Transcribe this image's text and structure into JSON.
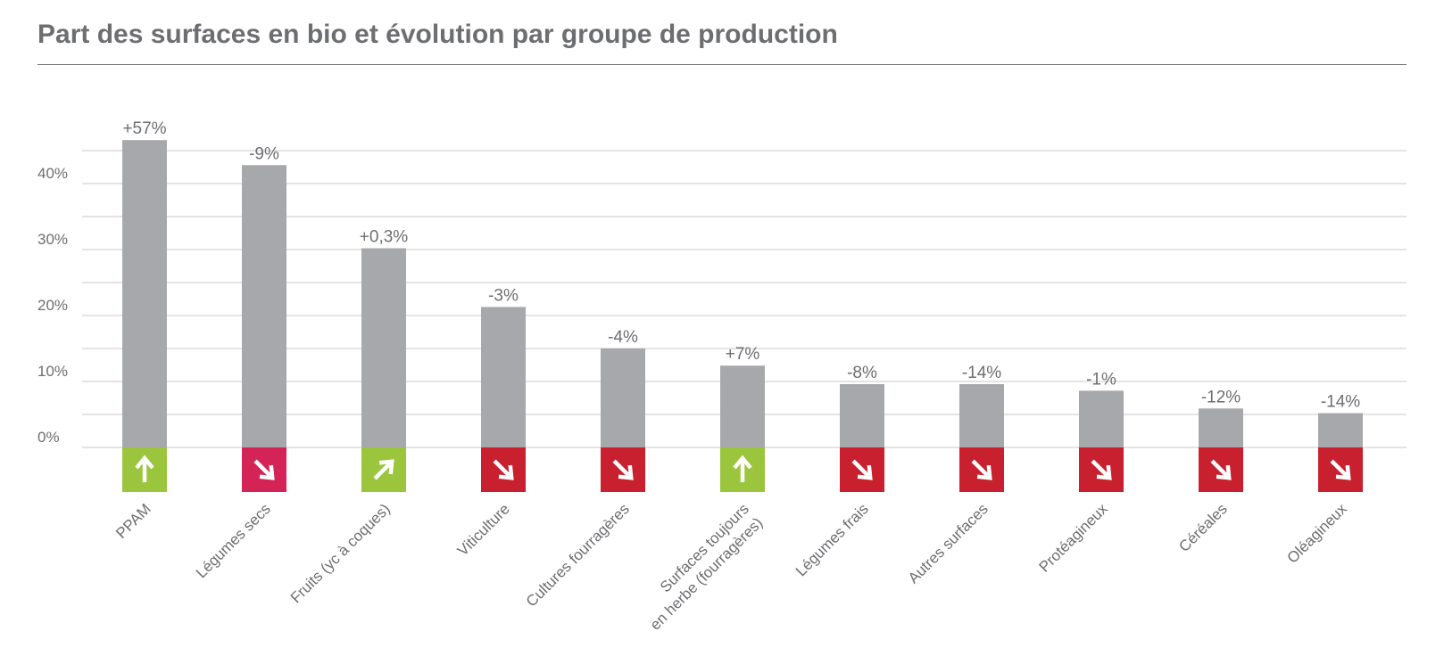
{
  "title": "Part des surfaces en bio et évolution par groupe de production",
  "colors": {
    "bar": "#a7a8ab",
    "grid": "#c8c9cb",
    "text": "#6d6e71",
    "up": "#9bc53d",
    "down_strong": "#d42457",
    "down": "#c8202f",
    "arrow": "#ffffff"
  },
  "chart_data": {
    "type": "bar",
    "title": "Part des surfaces en bio et évolution par groupe de production",
    "xlabel": "",
    "ylabel": "",
    "ylim": [
      0,
      47
    ],
    "y_ticks": [
      "0%",
      "10%",
      "20%",
      "30%",
      "40%"
    ],
    "grid": true,
    "legend": "none",
    "categories": [
      "PPAM",
      "Légumes secs",
      "Fruits (yc à coques)",
      "Viticulture",
      "Cultures fourragères",
      "Surfaces toujours en herbe (fourragères)",
      "Légumes frais",
      "Autres surfaces",
      "Protéagineux",
      "Céréales",
      "Oléagineux"
    ],
    "category_label_lines": [
      [
        "PPAM"
      ],
      [
        "Légumes secs"
      ],
      [
        "Fruits (yc à coques)"
      ],
      [
        "Viticulture"
      ],
      [
        "Cultures fourragères"
      ],
      [
        "Surfaces toujours",
        "en herbe (fourragères)"
      ],
      [
        "Légumes frais"
      ],
      [
        "Autres surfaces"
      ],
      [
        "Protéagineux"
      ],
      [
        "Céréales"
      ],
      [
        "Oléagineux"
      ]
    ],
    "values": [
      46.6,
      42.8,
      30.2,
      21.3,
      15.0,
      12.4,
      9.6,
      9.6,
      8.6,
      5.9,
      5.2
    ],
    "evolution_labels": [
      "+57%",
      "-9%",
      "+0,3%",
      "-3%",
      "-4%",
      "+7%",
      "-8%",
      "-14%",
      "-1%",
      "-12%",
      "-14%"
    ],
    "evolution_direction": [
      "up",
      "down-strong",
      "up-slight",
      "down",
      "down",
      "up",
      "down",
      "down",
      "down",
      "down",
      "down"
    ]
  }
}
